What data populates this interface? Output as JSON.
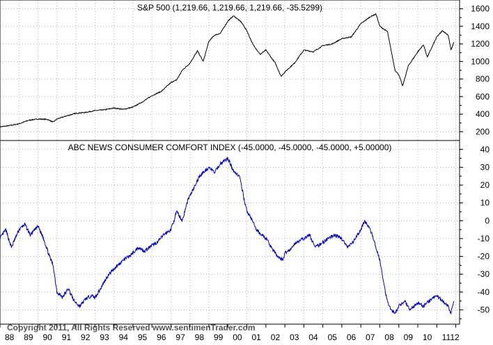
{
  "chart_data": [
    {
      "type": "line",
      "title": "S&P 500 (1,219.66, 1,219.66, 1,219.66, -35.5299)",
      "ylim": [
        100,
        1700
      ],
      "yticks": [
        200,
        400,
        600,
        800,
        1000,
        1200,
        1400,
        1600
      ],
      "grid": true,
      "axis_side": "right",
      "color": "#000000",
      "series": [
        {
          "x": [
            1988.0,
            1988.5,
            1989.0,
            1989.5,
            1990.0,
            1990.5,
            1990.8,
            1991.0,
            1991.5,
            1992.0,
            1992.5,
            1993.0,
            1993.5,
            1994.0,
            1994.5,
            1995.0,
            1995.5,
            1996.0,
            1996.5,
            1997.0,
            1997.3,
            1997.6,
            1998.0,
            1998.4,
            1998.7,
            1999.0,
            1999.3,
            1999.6,
            2000.0,
            2000.3,
            2000.7,
            2001.0,
            2001.3,
            2001.7,
            2002.0,
            2002.5,
            2002.8,
            2003.0,
            2003.5,
            2004.0,
            2004.5,
            2005.0,
            2005.5,
            2006.0,
            2006.5,
            2007.0,
            2007.5,
            2007.8,
            2008.0,
            2008.4,
            2008.8,
            2009.0,
            2009.2,
            2009.5,
            2010.0,
            2010.3,
            2010.5,
            2011.0,
            2011.3,
            2011.6,
            2011.75,
            2011.9
          ],
          "y": [
            255,
            270,
            290,
            330,
            345,
            340,
            310,
            345,
            380,
            410,
            420,
            440,
            450,
            470,
            455,
            480,
            540,
            610,
            660,
            760,
            790,
            900,
            980,
            1120,
            1000,
            1230,
            1300,
            1320,
            1460,
            1520,
            1450,
            1350,
            1200,
            1080,
            1130,
            980,
            830,
            880,
            980,
            1130,
            1110,
            1180,
            1200,
            1260,
            1280,
            1430,
            1510,
            1540,
            1400,
            1340,
            900,
            850,
            720,
            950,
            1110,
            1190,
            1050,
            1280,
            1350,
            1300,
            1130,
            1220
          ]
        }
      ]
    },
    {
      "type": "line",
      "title": "ABC NEWS CONSUMER COMFORT INDEX (-45.0000, -45.0000, -45.0000, +5.00000)",
      "ylim": [
        -58,
        45
      ],
      "yticks": [
        -50,
        -40,
        -30,
        -20,
        -10,
        0,
        10,
        20,
        30,
        40
      ],
      "grid": true,
      "axis_side": "right",
      "color": "#0000cc",
      "series": [
        {
          "x": [
            1988.0,
            1988.3,
            1988.6,
            1989.0,
            1989.3,
            1989.6,
            1990.0,
            1990.3,
            1990.6,
            1990.8,
            1991.0,
            1991.3,
            1991.6,
            1991.9,
            1992.2,
            1992.5,
            1992.8,
            1993.0,
            1993.3,
            1993.6,
            1993.9,
            1994.2,
            1994.5,
            1994.8,
            1995.0,
            1995.3,
            1995.6,
            1996.0,
            1996.3,
            1996.6,
            1997.0,
            1997.3,
            1997.6,
            1997.9,
            1998.2,
            1998.5,
            1998.8,
            1999.0,
            1999.3,
            1999.6,
            2000.0,
            2000.3,
            2000.6,
            2000.8,
            2001.0,
            2001.2,
            2001.5,
            2001.8,
            2002.0,
            2002.3,
            2002.6,
            2002.9,
            2003.0,
            2003.3,
            2003.6,
            2004.0,
            2004.3,
            2004.6,
            2005.0,
            2005.3,
            2005.6,
            2006.0,
            2006.3,
            2006.6,
            2007.0,
            2007.2,
            2007.5,
            2007.8,
            2008.0,
            2008.2,
            2008.4,
            2008.6,
            2008.8,
            2009.0,
            2009.3,
            2009.6,
            2010.0,
            2010.3,
            2010.6,
            2011.0,
            2011.3,
            2011.6,
            2011.75,
            2011.9
          ],
          "y": [
            -10,
            -5,
            -15,
            -5,
            -2,
            -8,
            -3,
            -10,
            -20,
            -25,
            -40,
            -43,
            -38,
            -45,
            -48,
            -44,
            -42,
            -43,
            -38,
            -32,
            -28,
            -25,
            -22,
            -20,
            -18,
            -15,
            -17,
            -14,
            -12,
            -8,
            -5,
            5,
            0,
            12,
            18,
            25,
            28,
            30,
            27,
            32,
            35,
            28,
            25,
            15,
            5,
            2,
            -5,
            -8,
            -10,
            -15,
            -20,
            -22,
            -18,
            -16,
            -12,
            -10,
            -8,
            -15,
            -12,
            -10,
            -8,
            -10,
            -15,
            -12,
            -5,
            0,
            -5,
            -15,
            -22,
            -35,
            -45,
            -50,
            -52,
            -48,
            -45,
            -50,
            -46,
            -48,
            -45,
            -42,
            -45,
            -48,
            -52,
            -45
          ]
        }
      ]
    }
  ],
  "x_axis": {
    "tick_labels": [
      "88",
      "89",
      "90",
      "91",
      "92",
      "93",
      "94",
      "95",
      "96",
      "97",
      "98",
      "99",
      "00",
      "01",
      "02",
      "03",
      "04",
      "05",
      "06",
      "07",
      "08",
      "09",
      "10",
      "11",
      "12"
    ]
  },
  "footer": {
    "copyright": "Copyright 2011, All Rights Reserved  www.sentimenTrader.com"
  }
}
